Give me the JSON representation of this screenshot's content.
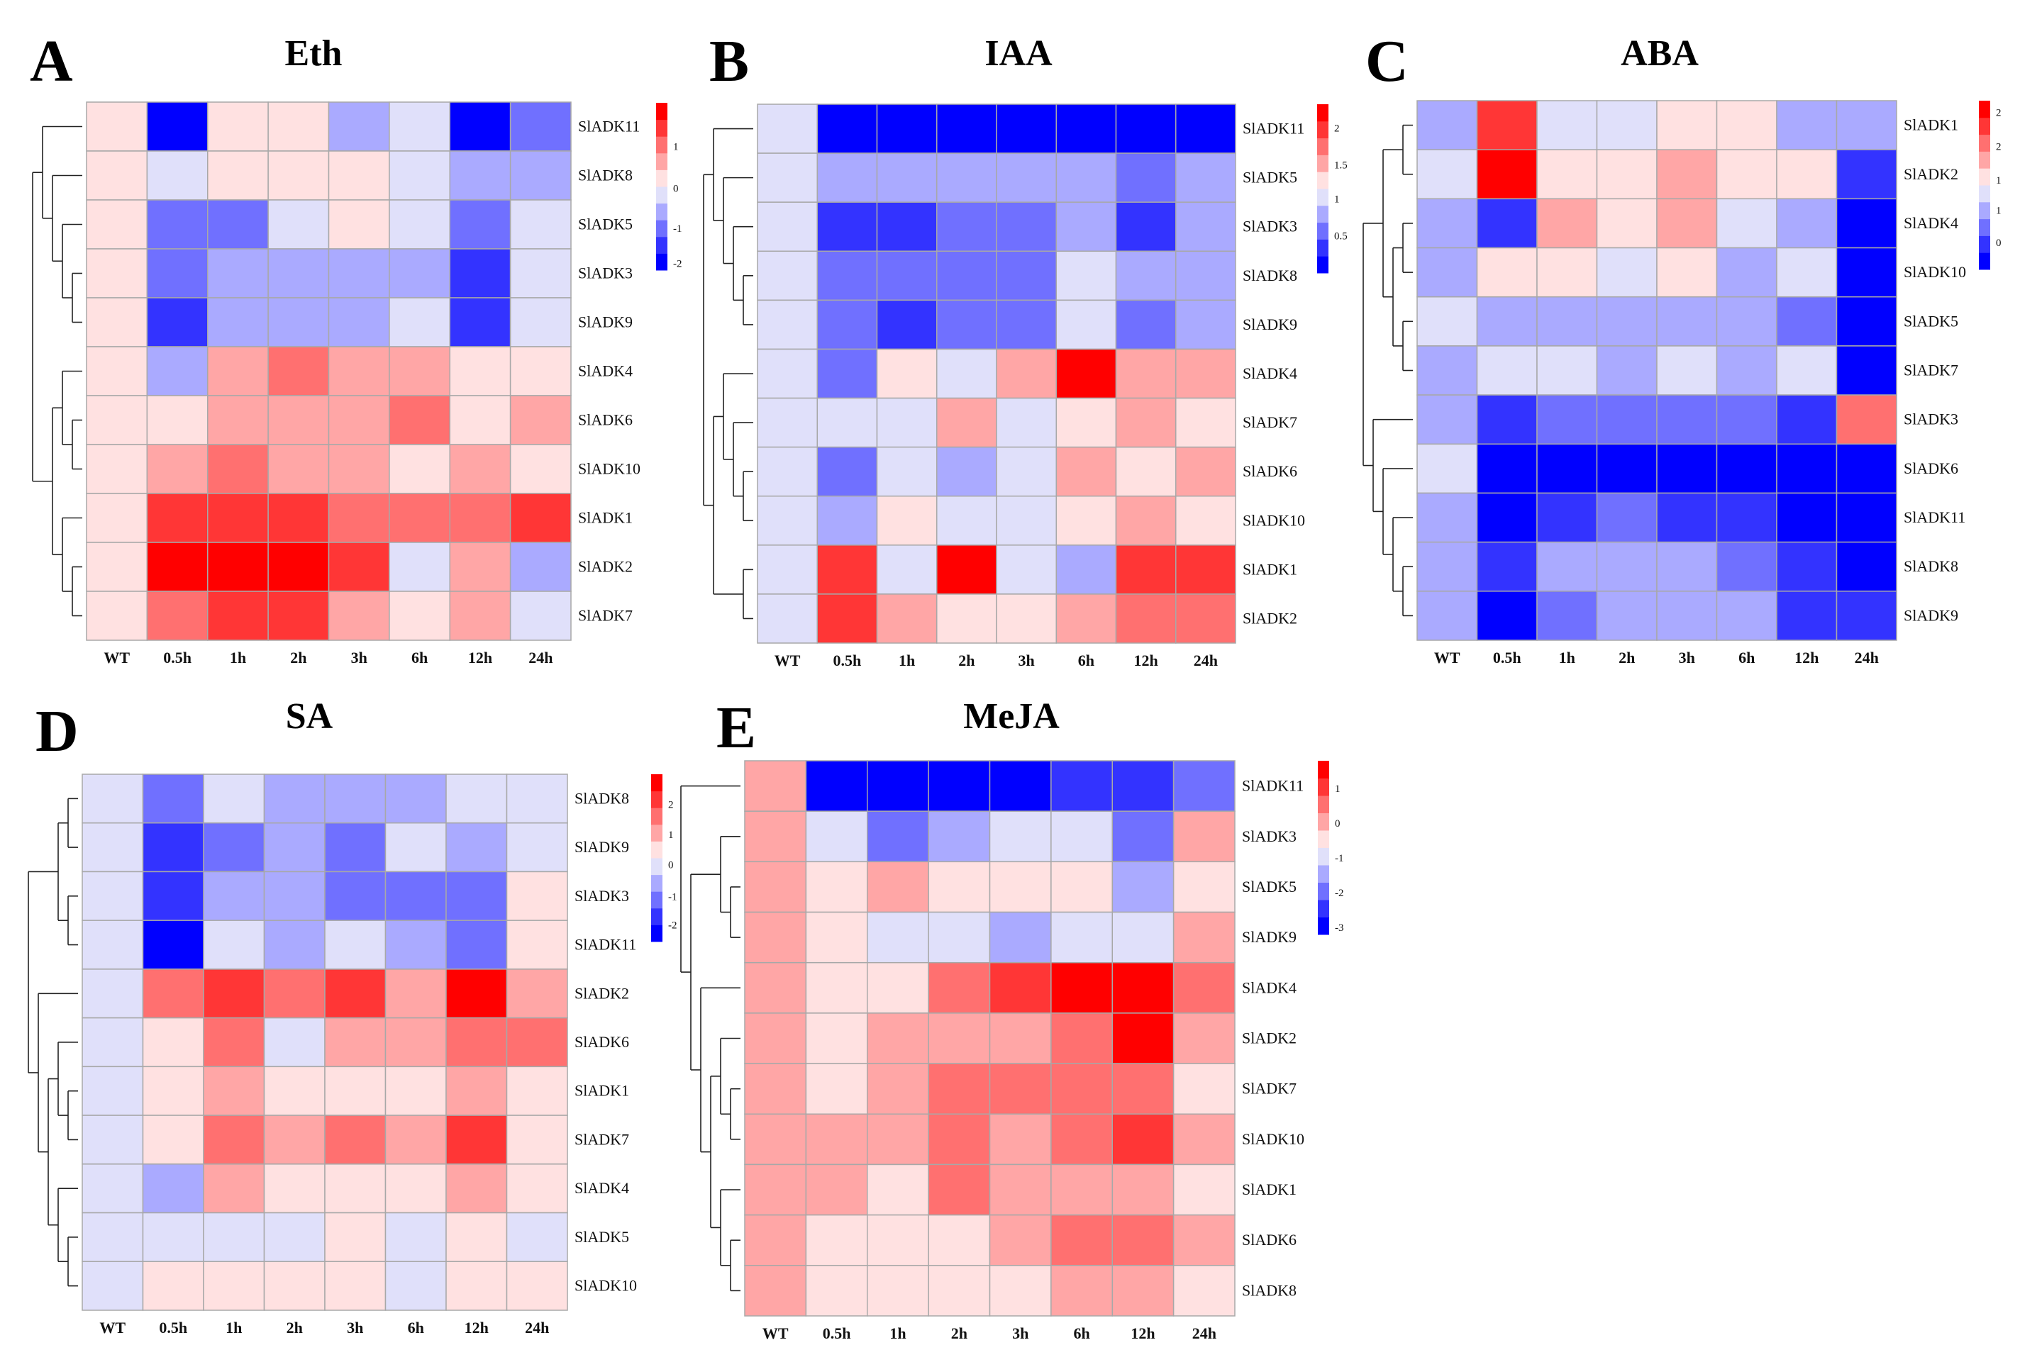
{
  "chart_data": [
    {
      "type": "heatmap",
      "panel_letter": "A",
      "title": "Eth",
      "columns": [
        "WT",
        "0.5h",
        "1h",
        "2h",
        "3h",
        "6h",
        "12h",
        "24h"
      ],
      "rows": [
        "SlADK11",
        "SlADK8",
        "SlADK5",
        "SlADK3",
        "SlADK9",
        "SlADK4",
        "SlADK6",
        "SlADK10",
        "SlADK1",
        "SlADK2",
        "SlADK7"
      ],
      "scale": {
        "min": -2.1,
        "max": 2.1
      },
      "legend_ticks": [
        "1",
        "0",
        "-1",
        "-2"
      ],
      "values": [
        [
          0.2,
          -1.9,
          0.2,
          0.2,
          -0.6,
          -0.2,
          -1.9,
          -1.0
        ],
        [
          0.2,
          -0.2,
          0.2,
          0.2,
          0.2,
          -0.2,
          -0.6,
          -0.6
        ],
        [
          0.2,
          -1.0,
          -1.0,
          -0.2,
          0.2,
          -0.2,
          -1.0,
          -0.2
        ],
        [
          0.2,
          -1.0,
          -0.6,
          -0.6,
          -0.6,
          -0.6,
          -1.5,
          -0.2
        ],
        [
          0.2,
          -1.5,
          -0.6,
          -0.6,
          -0.6,
          -0.2,
          -1.5,
          -0.2
        ],
        [
          0.2,
          -0.6,
          0.6,
          1.0,
          0.6,
          0.6,
          0.2,
          0.2
        ],
        [
          0.2,
          0.2,
          0.6,
          0.6,
          0.6,
          1.0,
          0.2,
          0.6
        ],
        [
          0.2,
          0.6,
          1.0,
          0.6,
          0.6,
          0.2,
          0.6,
          0.2
        ],
        [
          0.2,
          1.5,
          1.5,
          1.5,
          1.0,
          1.0,
          1.0,
          1.5
        ],
        [
          0.2,
          1.9,
          1.9,
          1.9,
          1.5,
          -0.2,
          0.6,
          -0.6
        ],
        [
          0.2,
          1.0,
          1.5,
          1.5,
          0.6,
          0.2,
          0.6,
          -0.2
        ]
      ]
    },
    {
      "type": "heatmap",
      "panel_letter": "B",
      "title": "IAA",
      "columns": [
        "WT",
        "0.5h",
        "1h",
        "2h",
        "3h",
        "6h",
        "12h",
        "24h"
      ],
      "rows": [
        "SlADK11",
        "SlADK5",
        "SlADK3",
        "SlADK8",
        "SlADK9",
        "SlADK4",
        "SlADK7",
        "SlADK6",
        "SlADK10",
        "SlADK1",
        "SlADK2"
      ],
      "scale": {
        "min": 0,
        "max": 2.3
      },
      "legend_ticks": [
        "2",
        "1.5",
        "1",
        "0.5"
      ],
      "values": [
        [
          1.0,
          0.1,
          0.1,
          0.1,
          0.1,
          0.1,
          0.1,
          0.1
        ],
        [
          1.0,
          0.8,
          0.8,
          0.8,
          0.8,
          0.8,
          0.6,
          0.8
        ],
        [
          1.0,
          0.35,
          0.35,
          0.6,
          0.6,
          0.8,
          0.35,
          0.8
        ],
        [
          1.0,
          0.6,
          0.6,
          0.6,
          0.6,
          1.0,
          0.8,
          0.8
        ],
        [
          1.0,
          0.6,
          0.35,
          0.6,
          0.6,
          1.0,
          0.6,
          0.8
        ],
        [
          1.0,
          0.6,
          1.25,
          1.0,
          1.5,
          2.2,
          1.5,
          1.5
        ],
        [
          1.0,
          1.0,
          1.0,
          1.5,
          1.0,
          1.25,
          1.5,
          1.25
        ],
        [
          1.0,
          0.6,
          1.0,
          0.8,
          1.0,
          1.5,
          1.25,
          1.5
        ],
        [
          1.0,
          0.8,
          1.25,
          1.0,
          1.0,
          1.25,
          1.5,
          1.25
        ],
        [
          1.0,
          1.95,
          1.0,
          2.2,
          1.0,
          0.8,
          1.95,
          1.95
        ],
        [
          1.0,
          1.95,
          1.5,
          1.25,
          1.25,
          1.5,
          1.7,
          1.7
        ]
      ]
    },
    {
      "type": "heatmap",
      "panel_letter": "C",
      "title": "ABA",
      "columns": [
        "WT",
        "0.5h",
        "1h",
        "2h",
        "3h",
        "6h",
        "12h",
        "24h"
      ],
      "rows": [
        "SlADK1",
        "SlADK2",
        "SlADK4",
        "SlADK10",
        "SlADK5",
        "SlADK7",
        "SlADK3",
        "SlADK6",
        "SlADK11",
        "SlADK8",
        "SlADK9"
      ],
      "scale": {
        "min": 0.2,
        "max": 2.6
      },
      "legend_ticks": [
        "2",
        "2",
        "1",
        "1",
        "0"
      ],
      "values": [
        [
          1.0,
          2.2,
          1.3,
          1.3,
          1.5,
          1.5,
          1.0,
          1.0
        ],
        [
          1.3,
          2.5,
          1.5,
          1.5,
          1.75,
          1.5,
          1.5,
          0.55
        ],
        [
          1.0,
          0.55,
          1.75,
          1.5,
          1.75,
          1.3,
          1.0,
          0.3
        ],
        [
          1.0,
          1.5,
          1.5,
          1.3,
          1.5,
          1.0,
          1.3,
          0.3
        ],
        [
          1.3,
          1.0,
          1.0,
          1.0,
          1.0,
          1.0,
          0.8,
          0.3
        ],
        [
          1.0,
          1.3,
          1.3,
          1.0,
          1.3,
          1.0,
          1.3,
          0.3
        ],
        [
          1.0,
          0.55,
          0.8,
          0.8,
          0.8,
          0.8,
          0.55,
          2.0
        ],
        [
          1.3,
          0.3,
          0.3,
          0.3,
          0.3,
          0.3,
          0.3,
          0.3
        ],
        [
          1.0,
          0.3,
          0.55,
          0.8,
          0.55,
          0.55,
          0.3,
          0.3
        ],
        [
          1.0,
          0.55,
          1.0,
          1.0,
          1.0,
          0.8,
          0.55,
          0.3
        ],
        [
          1.0,
          0.3,
          0.8,
          1.0,
          1.0,
          1.0,
          0.55,
          0.55
        ]
      ]
    },
    {
      "type": "heatmap",
      "panel_letter": "D",
      "title": "SA",
      "columns": [
        "WT",
        "0.5h",
        "1h",
        "2h",
        "3h",
        "6h",
        "12h",
        "24h"
      ],
      "rows": [
        "SlADK8",
        "SlADK9",
        "SlADK3",
        "SlADK11",
        "SlADK2",
        "SlADK6",
        "SlADK1",
        "SlADK7",
        "SlADK4",
        "SlADK5",
        "SlADK10"
      ],
      "scale": {
        "min": -2.55,
        "max": 3.0
      },
      "legend_ticks": [
        "2",
        "1",
        "0",
        "-1",
        "-2"
      ],
      "values": [
        [
          -0.1,
          -1.2,
          -0.1,
          -0.65,
          -0.65,
          -0.65,
          -0.1,
          -0.1
        ],
        [
          -0.1,
          -1.75,
          -1.2,
          -0.65,
          -1.2,
          -0.1,
          -0.65,
          -0.1
        ],
        [
          -0.1,
          -1.75,
          -0.65,
          -0.65,
          -1.2,
          -1.2,
          -1.2,
          0.45
        ],
        [
          -0.1,
          -2.3,
          -0.1,
          -0.65,
          -0.1,
          -0.65,
          -1.2,
          0.45
        ],
        [
          -0.1,
          1.55,
          2.1,
          1.55,
          2.1,
          1.0,
          2.65,
          1.0
        ],
        [
          -0.1,
          0.45,
          1.55,
          -0.1,
          1.0,
          1.0,
          1.55,
          1.55
        ],
        [
          -0.1,
          0.45,
          1.0,
          0.45,
          0.45,
          0.45,
          1.0,
          0.45
        ],
        [
          -0.1,
          0.45,
          1.55,
          1.0,
          1.55,
          1.0,
          2.1,
          0.45
        ],
        [
          -0.1,
          -0.65,
          1.0,
          0.45,
          0.45,
          0.45,
          1.0,
          0.45
        ],
        [
          -0.1,
          -0.1,
          -0.1,
          -0.1,
          0.45,
          -0.1,
          0.45,
          -0.1
        ],
        [
          -0.1,
          0.45,
          0.45,
          0.45,
          0.45,
          -0.1,
          0.45,
          0.45
        ]
      ]
    },
    {
      "type": "heatmap",
      "panel_letter": "E",
      "title": "MeJA",
      "columns": [
        "WT",
        "0.5h",
        "1h",
        "2h",
        "3h",
        "6h",
        "12h",
        "24h"
      ],
      "rows": [
        "SlADK11",
        "SlADK3",
        "SlADK5",
        "SlADK9",
        "SlADK4",
        "SlADK2",
        "SlADK7",
        "SlADK10",
        "SlADK1",
        "SlADK6",
        "SlADK8"
      ],
      "scale": {
        "min": -3.15,
        "max": 1.85
      },
      "legend_ticks": [
        "1",
        "0",
        "-1",
        "-2",
        "-3"
      ],
      "values": [
        [
          0.1,
          -2.9,
          -2.9,
          -2.9,
          -2.9,
          -2.4,
          -2.4,
          -1.9
        ],
        [
          0.1,
          -0.9,
          -1.9,
          -1.4,
          -0.9,
          -0.9,
          -1.9,
          0.1
        ],
        [
          0.1,
          -0.4,
          0.1,
          -0.4,
          -0.4,
          -0.4,
          -1.4,
          -0.4
        ],
        [
          0.1,
          -0.4,
          -0.9,
          -0.9,
          -1.4,
          -0.9,
          -0.9,
          0.1
        ],
        [
          0.1,
          -0.4,
          -0.4,
          0.6,
          1.1,
          1.6,
          1.6,
          0.6
        ],
        [
          0.1,
          -0.4,
          0.1,
          0.1,
          0.1,
          0.6,
          1.6,
          0.1
        ],
        [
          0.1,
          -0.4,
          0.1,
          0.6,
          0.6,
          0.6,
          0.6,
          -0.4
        ],
        [
          0.1,
          0.1,
          0.1,
          0.6,
          0.1,
          0.6,
          1.1,
          0.1
        ],
        [
          0.1,
          0.1,
          -0.4,
          0.6,
          0.1,
          0.1,
          0.1,
          -0.4
        ],
        [
          0.1,
          -0.4,
          -0.4,
          -0.4,
          0.1,
          0.6,
          0.6,
          0.1
        ],
        [
          0.1,
          -0.4,
          -0.4,
          -0.4,
          -0.4,
          0.1,
          0.1,
          -0.4
        ]
      ]
    }
  ],
  "palette": [
    "#0000ff",
    "#3333ff",
    "#7070ff",
    "#aaaaff",
    "#e0e0fa",
    "#ffe1e1",
    "#ffa6a6",
    "#ff7070",
    "#ff3636",
    "#ff0000"
  ]
}
